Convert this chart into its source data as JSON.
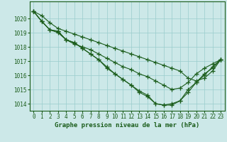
{
  "title": "Graphe pression niveau de la mer (hPa)",
  "hours": [
    0,
    1,
    2,
    3,
    4,
    5,
    6,
    7,
    8,
    9,
    10,
    11,
    12,
    13,
    14,
    15,
    16,
    17,
    18,
    19,
    20,
    21,
    22,
    23
  ],
  "series": [
    [
      1020.5,
      1019.8,
      1019.2,
      1019.0,
      1018.5,
      1018.2,
      1018.0,
      1017.8,
      1017.5,
      1017.2,
      1016.9,
      1016.6,
      1016.4,
      1016.1,
      1015.9,
      1015.6,
      1015.3,
      1015.0,
      1015.1,
      1015.5,
      1016.1,
      1016.5,
      1016.8,
      1017.1
    ],
    [
      1020.5,
      1019.8,
      1019.2,
      1019.1,
      1018.5,
      1018.3,
      1017.9,
      1017.5,
      1017.1,
      1016.6,
      1016.1,
      1015.7,
      1015.3,
      1014.9,
      1014.6,
      1014.0,
      1013.9,
      1013.9,
      1014.2,
      1014.8,
      1015.5,
      1016.1,
      1016.5,
      1017.1
    ],
    [
      1020.5,
      1019.8,
      1019.2,
      1019.1,
      1018.5,
      1018.3,
      1017.9,
      1017.5,
      1017.1,
      1016.5,
      1016.1,
      1015.7,
      1015.3,
      1014.8,
      1014.5,
      1014.0,
      1013.9,
      1014.0,
      1014.2,
      1015.0,
      1015.5,
      1016.0,
      1016.6,
      1017.1
    ],
    [
      1020.5,
      1020.2,
      1019.7,
      1019.3,
      1019.1,
      1018.9,
      1018.7,
      1018.5,
      1018.3,
      1018.1,
      1017.9,
      1017.7,
      1017.5,
      1017.3,
      1017.1,
      1016.9,
      1016.7,
      1016.5,
      1016.3,
      1015.8,
      1015.6,
      1015.8,
      1016.3,
      1017.1
    ]
  ],
  "line_color": "#1a5c1a",
  "marker": "+",
  "markersize": 4,
  "linewidth": 0.8,
  "bg_color": "#cce8e8",
  "grid_color": "#99cccc",
  "ylim": [
    1013.5,
    1021.2
  ],
  "yticks": [
    1014,
    1015,
    1016,
    1017,
    1018,
    1019,
    1020
  ],
  "tick_fontsize": 5.5,
  "title_fontsize": 6.5,
  "xtick_labels": [
    "0",
    "1",
    "2",
    "3",
    "4",
    "5",
    "6",
    "7",
    "8",
    "9",
    "10",
    "11",
    "12",
    "13",
    "14",
    "15",
    "16",
    "17",
    "18",
    "19",
    "20",
    "21",
    "22",
    "23"
  ]
}
